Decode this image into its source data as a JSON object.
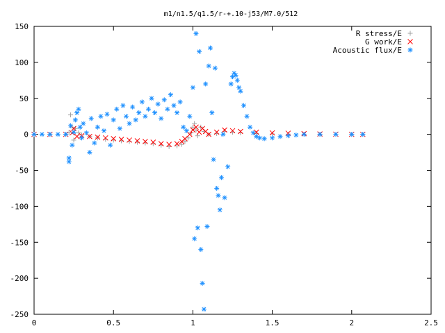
{
  "chart_data": {
    "type": "scatter",
    "title": "m1/n1.5/q1.5/r-+.10-j53/M7.0/512",
    "xlabel": "",
    "ylabel": "",
    "xlim": [
      0,
      2.5
    ],
    "ylim": [
      -250,
      150
    ],
    "x_ticks": [
      0,
      0.5,
      1,
      1.5,
      2,
      2.5
    ],
    "x_tick_labels": [
      "0",
      "0.5",
      "1",
      "1.5",
      "2",
      "2.5"
    ],
    "y_ticks": [
      -250,
      -200,
      -150,
      -100,
      -50,
      0,
      50,
      100,
      150
    ],
    "y_tick_labels": [
      "-250",
      "-200",
      "-150",
      "-100",
      "-50",
      "0",
      "50",
      "100",
      "150"
    ],
    "grid": false,
    "legend_position": "top-right",
    "series": [
      {
        "name": "R stress/E",
        "marker": "plus",
        "color": "#a0a0a0",
        "points": [
          [
            0.0,
            0
          ],
          [
            0.1,
            0
          ],
          [
            0.2,
            0
          ],
          [
            0.22,
            3
          ],
          [
            0.23,
            27
          ],
          [
            0.24,
            10
          ],
          [
            0.25,
            -8
          ],
          [
            0.26,
            8
          ],
          [
            0.28,
            2
          ],
          [
            0.3,
            -1
          ],
          [
            0.35,
            -3
          ],
          [
            0.4,
            -5
          ],
          [
            0.45,
            -7
          ],
          [
            0.5,
            -8
          ],
          [
            0.55,
            -9
          ],
          [
            0.6,
            -10
          ],
          [
            0.65,
            -11
          ],
          [
            0.7,
            -12
          ],
          [
            0.75,
            -13
          ],
          [
            0.8,
            -15
          ],
          [
            0.85,
            -17
          ],
          [
            0.9,
            -16
          ],
          [
            0.93,
            -14
          ],
          [
            0.95,
            -10
          ],
          [
            0.97,
            -5
          ],
          [
            0.99,
            2
          ],
          [
            1.0,
            10
          ],
          [
            1.01,
            15
          ],
          [
            1.02,
            6
          ],
          [
            1.03,
            -2
          ],
          [
            1.05,
            10
          ],
          [
            1.07,
            4
          ],
          [
            1.1,
            0
          ],
          [
            1.15,
            1
          ],
          [
            1.2,
            4
          ],
          [
            1.25,
            3
          ],
          [
            1.3,
            2
          ],
          [
            1.4,
            1
          ],
          [
            1.5,
            0.5
          ],
          [
            1.6,
            0.3
          ],
          [
            1.8,
            0.1
          ],
          [
            2.0,
            0
          ],
          [
            2.07,
            0
          ]
        ]
      },
      {
        "name": "G work/E",
        "marker": "cross",
        "color": "#ff0000",
        "points": [
          [
            0.0,
            0
          ],
          [
            0.1,
            0
          ],
          [
            0.2,
            0
          ],
          [
            0.24,
            2
          ],
          [
            0.25,
            8
          ],
          [
            0.27,
            -3
          ],
          [
            0.3,
            -2
          ],
          [
            0.35,
            -3
          ],
          [
            0.4,
            -4
          ],
          [
            0.45,
            -5
          ],
          [
            0.5,
            -6
          ],
          [
            0.55,
            -7
          ],
          [
            0.6,
            -8
          ],
          [
            0.65,
            -9
          ],
          [
            0.7,
            -10
          ],
          [
            0.75,
            -11
          ],
          [
            0.8,
            -13
          ],
          [
            0.85,
            -14
          ],
          [
            0.9,
            -13
          ],
          [
            0.93,
            -10
          ],
          [
            0.95,
            -6
          ],
          [
            0.98,
            0
          ],
          [
            1.0,
            6
          ],
          [
            1.02,
            10
          ],
          [
            1.04,
            3
          ],
          [
            1.06,
            8
          ],
          [
            1.08,
            4
          ],
          [
            1.1,
            0
          ],
          [
            1.15,
            3
          ],
          [
            1.2,
            6
          ],
          [
            1.25,
            5
          ],
          [
            1.3,
            4
          ],
          [
            1.4,
            3
          ],
          [
            1.5,
            2
          ],
          [
            1.6,
            1.5
          ],
          [
            1.7,
            1
          ],
          [
            1.8,
            0.5
          ],
          [
            1.9,
            0.2
          ],
          [
            2.0,
            0
          ],
          [
            2.07,
            0
          ]
        ]
      },
      {
        "name": "Acoustic flux/E",
        "marker": "star",
        "color": "#1e90ff",
        "points": [
          [
            0.0,
            0
          ],
          [
            0.05,
            0
          ],
          [
            0.1,
            0
          ],
          [
            0.15,
            0
          ],
          [
            0.2,
            0
          ],
          [
            0.22,
            -38
          ],
          [
            0.22,
            -33
          ],
          [
            0.23,
            12
          ],
          [
            0.24,
            -15
          ],
          [
            0.25,
            3
          ],
          [
            0.26,
            20
          ],
          [
            0.27,
            30
          ],
          [
            0.28,
            35
          ],
          [
            0.29,
            10
          ],
          [
            0.3,
            -5
          ],
          [
            0.31,
            15
          ],
          [
            0.33,
            2
          ],
          [
            0.35,
            -25
          ],
          [
            0.36,
            22
          ],
          [
            0.38,
            -12
          ],
          [
            0.4,
            10
          ],
          [
            0.42,
            25
          ],
          [
            0.44,
            5
          ],
          [
            0.46,
            28
          ],
          [
            0.48,
            -15
          ],
          [
            0.5,
            20
          ],
          [
            0.52,
            35
          ],
          [
            0.54,
            8
          ],
          [
            0.56,
            40
          ],
          [
            0.58,
            25
          ],
          [
            0.6,
            15
          ],
          [
            0.62,
            38
          ],
          [
            0.64,
            20
          ],
          [
            0.66,
            30
          ],
          [
            0.68,
            45
          ],
          [
            0.7,
            25
          ],
          [
            0.72,
            35
          ],
          [
            0.74,
            50
          ],
          [
            0.76,
            30
          ],
          [
            0.78,
            42
          ],
          [
            0.8,
            22
          ],
          [
            0.82,
            48
          ],
          [
            0.84,
            35
          ],
          [
            0.86,
            55
          ],
          [
            0.88,
            40
          ],
          [
            0.9,
            30
          ],
          [
            0.92,
            45
          ],
          [
            0.94,
            10
          ],
          [
            0.96,
            5
          ],
          [
            0.98,
            25
          ],
          [
            1.0,
            65
          ],
          [
            1.01,
            -145
          ],
          [
            1.02,
            140
          ],
          [
            1.03,
            -130
          ],
          [
            1.04,
            115
          ],
          [
            1.05,
            -160
          ],
          [
            1.06,
            -207
          ],
          [
            1.07,
            -243
          ],
          [
            1.08,
            70
          ],
          [
            1.09,
            -128
          ],
          [
            1.1,
            95
          ],
          [
            1.11,
            120
          ],
          [
            1.12,
            30
          ],
          [
            1.13,
            -35
          ],
          [
            1.14,
            92
          ],
          [
            1.15,
            -75
          ],
          [
            1.16,
            -85
          ],
          [
            1.17,
            -105
          ],
          [
            1.18,
            -60
          ],
          [
            1.19,
            0
          ],
          [
            1.2,
            -88
          ],
          [
            1.22,
            -45
          ],
          [
            1.24,
            70
          ],
          [
            1.25,
            80
          ],
          [
            1.26,
            85
          ],
          [
            1.27,
            82
          ],
          [
            1.28,
            75
          ],
          [
            1.29,
            65
          ],
          [
            1.3,
            60
          ],
          [
            1.32,
            40
          ],
          [
            1.34,
            25
          ],
          [
            1.36,
            10
          ],
          [
            1.38,
            2
          ],
          [
            1.4,
            -3
          ],
          [
            1.42,
            -5
          ],
          [
            1.45,
            -6
          ],
          [
            1.5,
            -5
          ],
          [
            1.55,
            -3
          ],
          [
            1.6,
            -2
          ],
          [
            1.65,
            -1
          ],
          [
            1.7,
            0
          ],
          [
            1.8,
            0
          ],
          [
            1.9,
            0
          ],
          [
            2.0,
            0
          ],
          [
            2.07,
            0
          ]
        ]
      }
    ]
  }
}
